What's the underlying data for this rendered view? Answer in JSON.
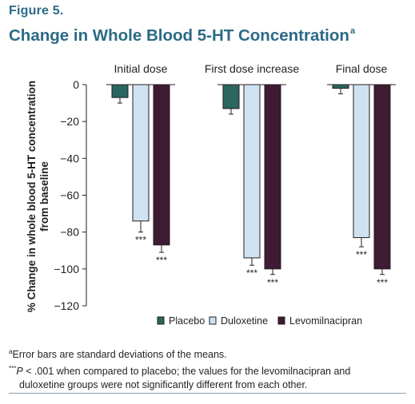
{
  "figure_label": "Figure 5.",
  "figure_title": "Change in Whole Blood 5-HT Concentration",
  "figure_title_sup": "a",
  "chart_data": {
    "type": "bar",
    "categories": [
      "Initial dose",
      "First dose increase",
      "Final dose"
    ],
    "ylabel": "% Change in whole blood 5-HT concentration from baseline",
    "ylabel_lines": [
      "% Change in whole blood 5-HT concentration",
      "from baseline"
    ],
    "xlabel": "",
    "ylim": [
      -120,
      0
    ],
    "yticks": [
      0,
      -20,
      -40,
      -60,
      -80,
      -100,
      -120
    ],
    "ytick_labels": [
      "0",
      "−20",
      "−40",
      "−60",
      "−80",
      "−100",
      "−120"
    ],
    "grid": false,
    "legend_position": "bottom-right",
    "series": [
      {
        "name": "Placebo",
        "color": "#2b6660",
        "values": [
          -7,
          -13,
          -2
        ],
        "error": [
          3,
          3,
          3
        ],
        "annotations": [
          "",
          "",
          ""
        ]
      },
      {
        "name": "Duloxetine",
        "color": "#cfe2f1",
        "values": [
          -74,
          -94,
          -83
        ],
        "error": [
          6,
          4,
          5
        ],
        "annotations": [
          "***",
          "***",
          "***"
        ]
      },
      {
        "name": "Levomilnacipran",
        "color": "#3f1a33",
        "values": [
          -87,
          -100,
          -100
        ],
        "error": [
          4,
          3,
          3
        ],
        "annotations": [
          "***",
          "***",
          "***"
        ]
      }
    ]
  },
  "footnotes": {
    "a_marker": "a",
    "a_text": "Error bars are standard deviations of the means.",
    "b_marker": "***",
    "b_ital": "P",
    "b_text1": " < .001 when compared to placebo; the values for the levomilnacipran and",
    "b_text2": "duloxetine groups were not significantly different from each other."
  }
}
